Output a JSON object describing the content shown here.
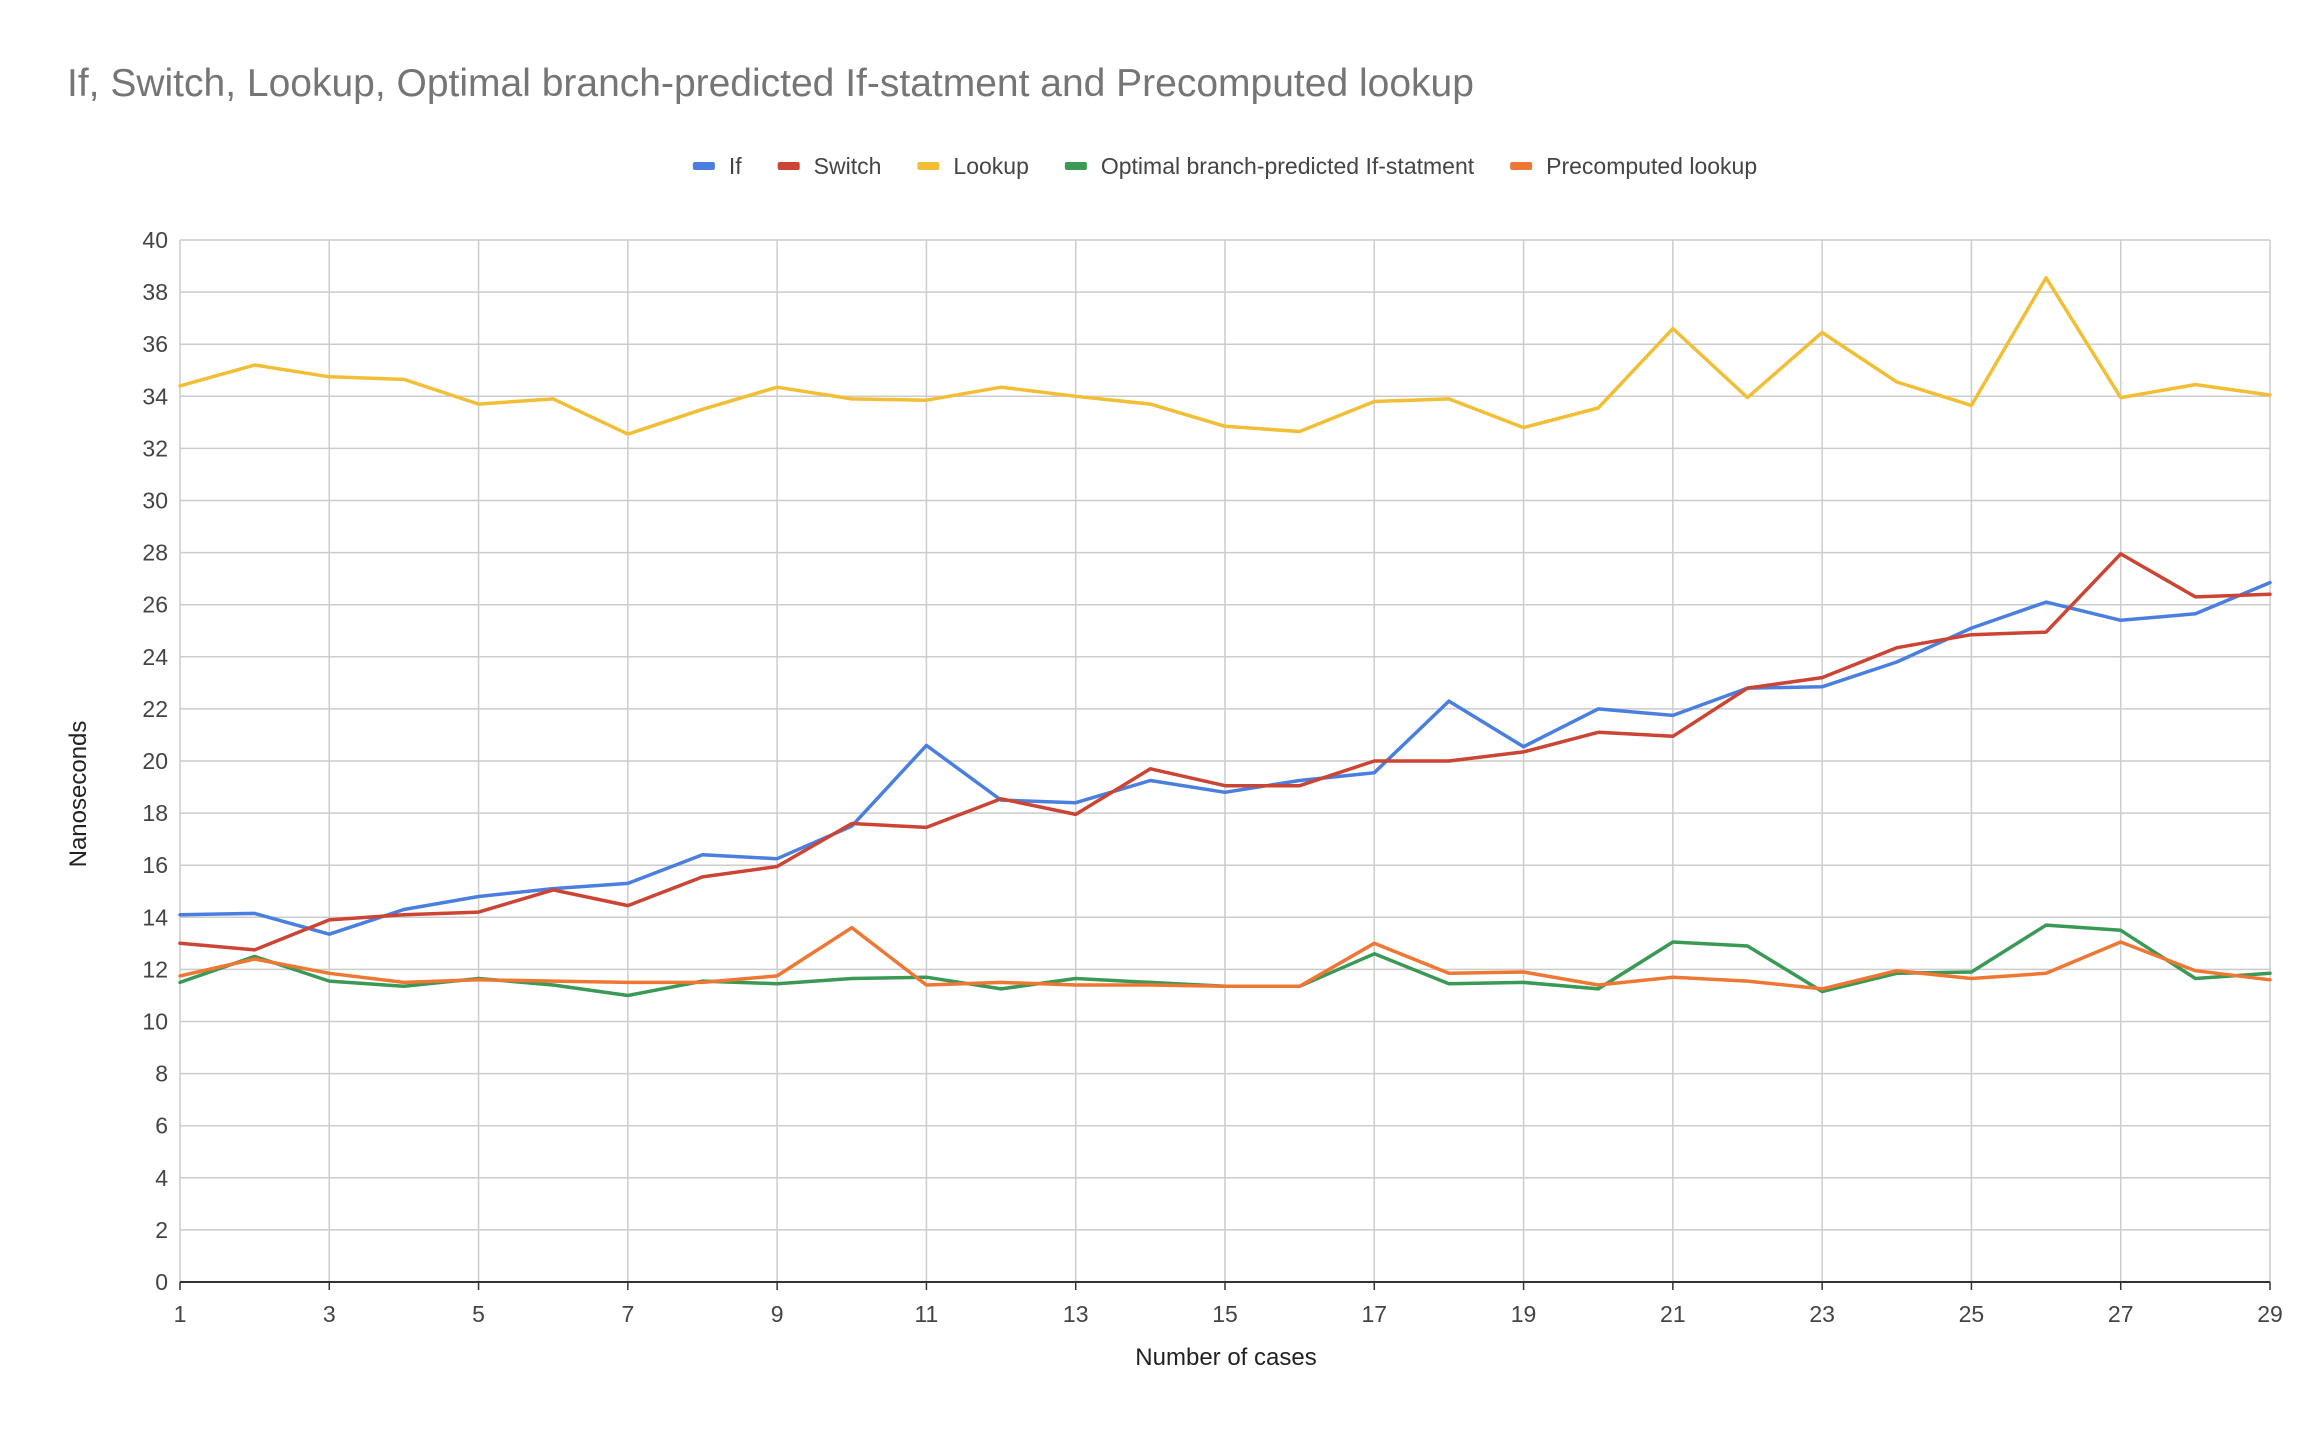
{
  "chart_data": {
    "type": "line",
    "title": "If, Switch, Lookup, Optimal branch-predicted If-statment and Precomputed lookup",
    "xlabel": "Number of cases",
    "ylabel": "Nanoseconds",
    "ylim": [
      0,
      40
    ],
    "xlim": [
      1,
      29
    ],
    "x": [
      1,
      2,
      3,
      4,
      5,
      6,
      7,
      8,
      9,
      10,
      11,
      12,
      13,
      14,
      15,
      16,
      17,
      18,
      19,
      20,
      21,
      22,
      23,
      24,
      25,
      26,
      27,
      28,
      29
    ],
    "x_ticks": [
      1,
      3,
      5,
      7,
      9,
      11,
      13,
      15,
      17,
      19,
      21,
      23,
      25,
      27,
      29
    ],
    "y_ticks": [
      0,
      2,
      4,
      6,
      8,
      10,
      12,
      14,
      16,
      18,
      20,
      22,
      24,
      26,
      28,
      30,
      32,
      34,
      36,
      38,
      40
    ],
    "grid": true,
    "legend_position": "top",
    "series": [
      {
        "name": "If",
        "color": "#4a7fe0",
        "values": [
          14.1,
          14.15,
          13.35,
          14.3,
          14.8,
          15.1,
          15.3,
          16.4,
          16.25,
          17.5,
          20.6,
          18.5,
          18.4,
          19.25,
          18.8,
          19.25,
          19.55,
          22.3,
          20.55,
          22.0,
          21.75,
          22.8,
          22.85,
          23.8,
          25.1,
          26.1,
          25.4,
          25.65,
          26.85
        ]
      },
      {
        "name": "Switch",
        "color": "#cc4433",
        "values": [
          13.0,
          12.75,
          13.9,
          14.1,
          14.2,
          15.05,
          14.45,
          15.55,
          15.95,
          17.6,
          17.45,
          18.55,
          17.95,
          19.7,
          19.05,
          19.05,
          20.0,
          20.0,
          20.35,
          21.1,
          20.95,
          22.8,
          23.2,
          24.35,
          24.85,
          24.95,
          27.95,
          26.3,
          26.4
        ]
      },
      {
        "name": "Lookup",
        "color": "#f1be35",
        "values": [
          34.4,
          35.2,
          34.75,
          34.65,
          33.7,
          33.9,
          32.55,
          33.5,
          34.35,
          33.9,
          33.85,
          34.35,
          34.0,
          33.7,
          32.85,
          32.65,
          33.8,
          33.9,
          32.8,
          33.55,
          36.6,
          33.95,
          36.45,
          34.55,
          33.65,
          38.55,
          33.95,
          34.45,
          34.05
        ]
      },
      {
        "name": "Optimal branch-predicted If-statment",
        "color": "#3a9955",
        "values": [
          11.5,
          12.5,
          11.55,
          11.35,
          11.65,
          11.4,
          11.0,
          11.55,
          11.45,
          11.65,
          11.7,
          11.25,
          11.65,
          11.5,
          11.35,
          11.35,
          12.6,
          11.45,
          11.5,
          11.25,
          13.05,
          12.9,
          11.15,
          11.85,
          11.9,
          13.7,
          13.5,
          11.65,
          11.85
        ]
      },
      {
        "name": "Precomputed lookup",
        "color": "#ee7733",
        "values": [
          11.75,
          12.4,
          11.85,
          11.5,
          11.6,
          11.55,
          11.5,
          11.5,
          11.75,
          13.6,
          11.4,
          11.5,
          11.4,
          11.4,
          11.35,
          11.35,
          13.0,
          11.85,
          11.9,
          11.4,
          11.7,
          11.55,
          11.25,
          11.95,
          11.65,
          11.85,
          13.05,
          11.95,
          11.6
        ]
      }
    ]
  }
}
